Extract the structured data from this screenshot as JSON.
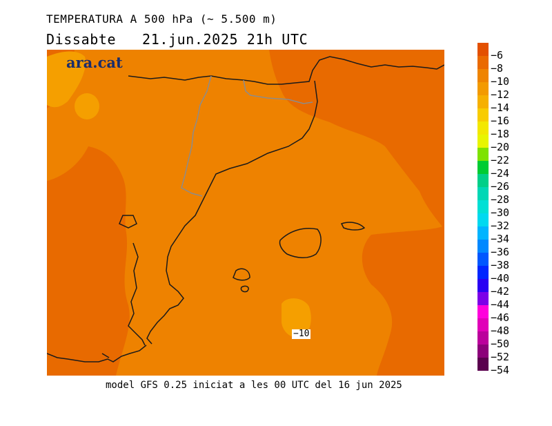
{
  "header": {
    "title": "TEMPERATURA A 500 hPa (~ 5.500 m)",
    "subtitle": "Dissabte   21.jun.2025 21h UTC"
  },
  "brand": {
    "name": "ara.cat",
    "color": "#1a2d6b"
  },
  "map": {
    "colors": {
      "deep": "#e86a00",
      "base": "#ee8200",
      "light": "#f59f00"
    },
    "contour_label": "−10"
  },
  "legend": {
    "items": [
      {
        "color": "#e35000",
        "label": "−6"
      },
      {
        "color": "#ea6a00",
        "label": "−8"
      },
      {
        "color": "#ef8400",
        "label": "−10"
      },
      {
        "color": "#f39a00",
        "label": "−12"
      },
      {
        "color": "#f6b000",
        "label": "−14"
      },
      {
        "color": "#f8cc00",
        "label": "−16"
      },
      {
        "color": "#f3e800",
        "label": "−18"
      },
      {
        "color": "#e8f500",
        "label": "−20"
      },
      {
        "color": "#7ee200",
        "label": "−22"
      },
      {
        "color": "#00cc33",
        "label": "−24"
      },
      {
        "color": "#00cf88",
        "label": "−26"
      },
      {
        "color": "#00d7b5",
        "label": "−28"
      },
      {
        "color": "#00e0d5",
        "label": "−30"
      },
      {
        "color": "#00d9f0",
        "label": "−32"
      },
      {
        "color": "#00b4ff",
        "label": "−34"
      },
      {
        "color": "#0088ff",
        "label": "−36"
      },
      {
        "color": "#0057ff",
        "label": "−38"
      },
      {
        "color": "#0026ff",
        "label": "−40"
      },
      {
        "color": "#2a00f3",
        "label": "−42"
      },
      {
        "color": "#7c00e8",
        "label": "−44"
      },
      {
        "color": "#ff00dc",
        "label": "−46"
      },
      {
        "color": "#e000b8",
        "label": "−48"
      },
      {
        "color": "#bb009c",
        "label": "−50"
      },
      {
        "color": "#8c007a",
        "label": "−52"
      },
      {
        "color": "#5a004e",
        "label": "−54"
      }
    ]
  },
  "footer": "model GFS 0.25 iniciat a les 00 UTC del 16 jun 2025"
}
